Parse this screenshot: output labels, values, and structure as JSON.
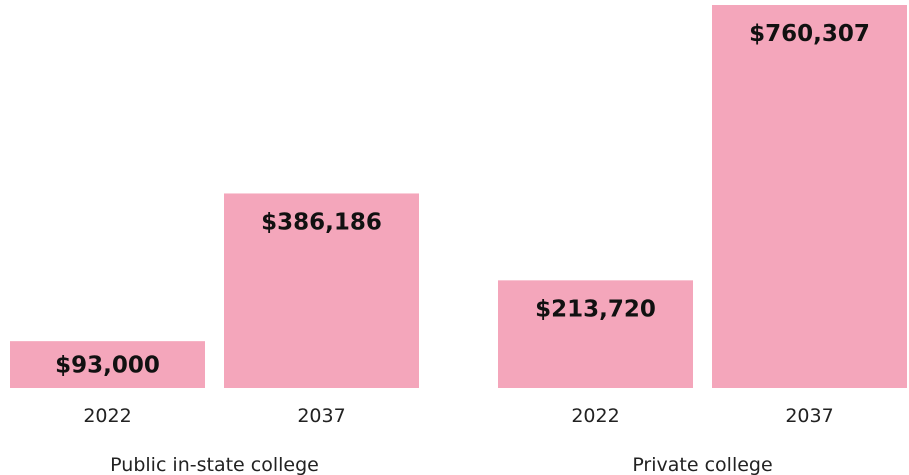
{
  "chart_data": {
    "type": "bar",
    "groups": [
      "Public in-state college",
      "Private college"
    ],
    "series": [
      {
        "name": "2022",
        "color": "#f4a6bb",
        "values": [
          93000,
          213720
        ],
        "value_labels": [
          "$93,000",
          "$213,720"
        ]
      },
      {
        "name": "2037",
        "color": "#f4a6bb",
        "values": [
          386186,
          760307
        ],
        "value_labels": [
          "$386,186",
          "$760,307"
        ]
      }
    ]
  }
}
